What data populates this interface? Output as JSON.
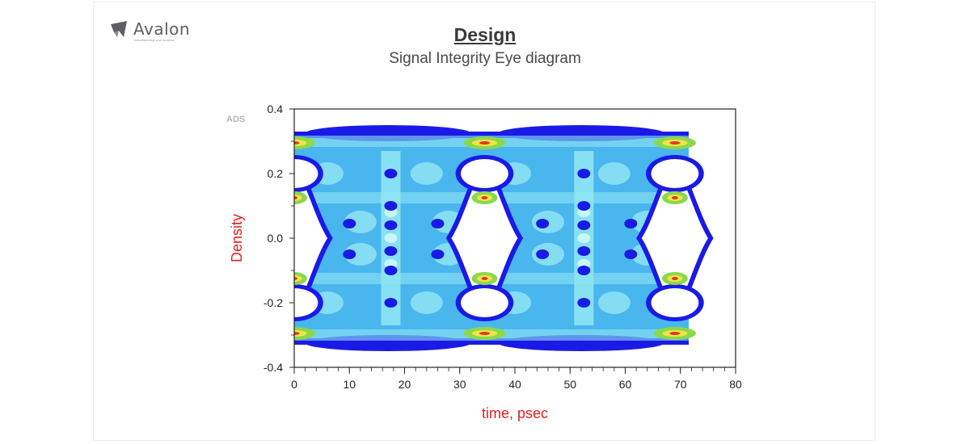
{
  "brand": {
    "name": "Avalon",
    "tagline": "manufacturing your success"
  },
  "header": {
    "title": "Design",
    "subtitle": "Signal Integrity Eye diagram"
  },
  "colors": {
    "axis_label": "#e41e1e",
    "outer_band": "#1a1ae6",
    "body_fill": "#49b6ee",
    "mid_fill": "#8fe4f4",
    "inner_fill": "#c9f6f6",
    "hot_ring": "#8bd94a",
    "hot_core": "#f0e44a",
    "hot_peak": "#e23a1f"
  },
  "chart_data": {
    "type": "heatmap",
    "title": "",
    "watermark": "ADS",
    "xlabel": "time, psec",
    "ylabel": "Density",
    "xlim": [
      0,
      80
    ],
    "ylim": [
      -0.4,
      0.4
    ],
    "x_ticks": [
      "0",
      "10",
      "20",
      "30",
      "40",
      "50",
      "60",
      "70",
      "80"
    ],
    "y_ticks": [
      "0.4",
      "0.2",
      "0.0",
      "-0.2",
      "-0.4"
    ],
    "x_minor_step": 2,
    "y_minor_step": 0.1,
    "grid": false,
    "data_x_range": [
      0,
      71.5
    ],
    "levels": {
      "high": 0.3,
      "low": -0.3,
      "mid_high": 0.125,
      "mid_low": -0.125
    },
    "eye_centers_x": [
      0,
      34.5,
      69
    ]
  }
}
